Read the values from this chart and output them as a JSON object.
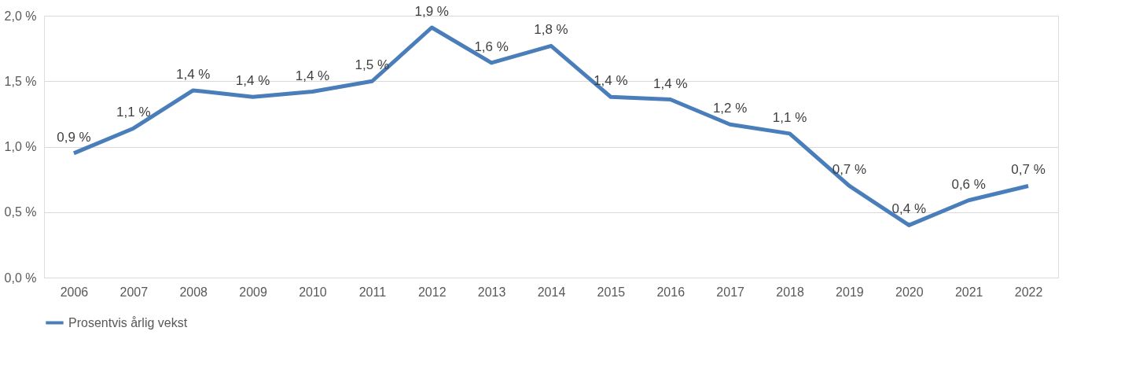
{
  "chart_data": {
    "type": "line",
    "categories": [
      "2006",
      "2007",
      "2008",
      "2009",
      "2010",
      "2011",
      "2012",
      "2013",
      "2014",
      "2015",
      "2016",
      "2017",
      "2018",
      "2019",
      "2020",
      "2021",
      "2022"
    ],
    "series": [
      {
        "name": "Prosentvis årlig vekst",
        "color": "#4a7ebb",
        "values": [
          0.95,
          1.14,
          1.43,
          1.38,
          1.42,
          1.5,
          1.91,
          1.64,
          1.77,
          1.38,
          1.36,
          1.17,
          1.1,
          0.7,
          0.4,
          0.59,
          0.7
        ],
        "value_labels": [
          "0,9 %",
          "1,1 %",
          "1,4 %",
          "1,4 %",
          "1,4 %",
          "1,5 %",
          "1,9 %",
          "1,6 %",
          "1,8 %",
          "1,4 %",
          "1,4 %",
          "1,2 %",
          "1,1 %",
          "0,7 %",
          "0,4 %",
          "0,6 %",
          "0,7 %"
        ]
      }
    ],
    "ylim": [
      0,
      2.0
    ],
    "yticks": [
      {
        "value": 0,
        "label": "0,0 %"
      },
      {
        "value": 0.5,
        "label": "0,5 %"
      },
      {
        "value": 1.0,
        "label": "1,0 %"
      },
      {
        "value": 1.5,
        "label": "1,5 %"
      },
      {
        "value": 2.0,
        "label": "2,0 %"
      }
    ],
    "grid": "y",
    "legend": "bottom",
    "marker": "none",
    "line_style": "solid"
  }
}
